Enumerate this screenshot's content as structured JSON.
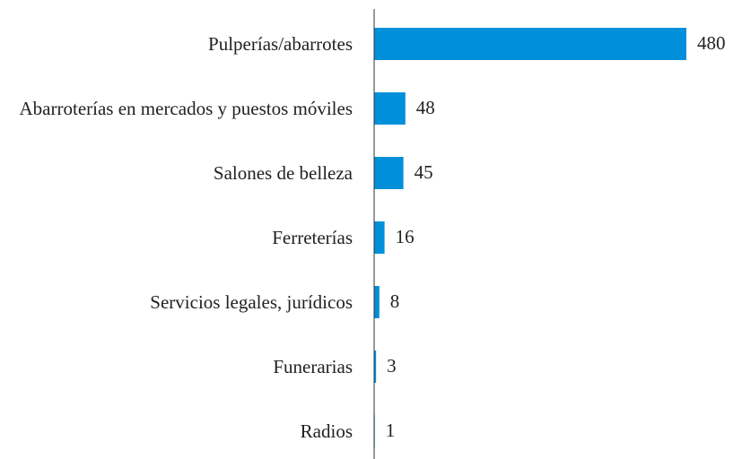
{
  "chart_data": {
    "type": "bar",
    "orientation": "horizontal",
    "categories": [
      "Pulperías/abarrotes",
      "Abarroterías en mercados y puestos móviles",
      "Salones de belleza",
      "Ferreterías",
      "Servicios legales, jurídicos",
      "Funerarias",
      "Radios"
    ],
    "values": [
      480,
      48,
      45,
      16,
      8,
      3,
      1
    ],
    "color": "#0090da"
  }
}
